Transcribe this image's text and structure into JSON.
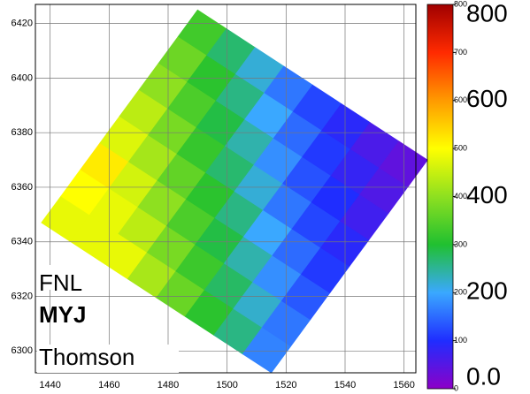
{
  "chart_data": {
    "type": "heatmap",
    "xlim": [
      1435,
      1564
    ],
    "ylim": [
      6292,
      6427
    ],
    "xticks": [
      1440,
      1460,
      1480,
      1500,
      1520,
      1540,
      1560
    ],
    "yticks": [
      6300,
      6320,
      6340,
      6360,
      6380,
      6400,
      6420
    ],
    "grid": true,
    "domain": [
      [
        1437,
        6347
      ],
      [
        1490,
        6425
      ],
      [
        1570,
        6370
      ],
      [
        1515,
        6292
      ]
    ],
    "field": [
      [
        480,
        480,
        480,
        423,
        366,
        310,
        260,
        170
      ],
      [
        500,
        480,
        440,
        380,
        325,
        275,
        225,
        160
      ],
      [
        520,
        460,
        400,
        340,
        290,
        240,
        180,
        135
      ],
      [
        470,
        420,
        360,
        310,
        260,
        200,
        150,
        110
      ],
      [
        440,
        380,
        320,
        270,
        220,
        160,
        120,
        90
      ],
      [
        400,
        340,
        290,
        240,
        180,
        130,
        100,
        70
      ],
      [
        370,
        310,
        260,
        200,
        150,
        110,
        80,
        55
      ],
      [
        330,
        270,
        220,
        160,
        120,
        90,
        60,
        40
      ]
    ],
    "colorbar": {
      "lim": [
        0,
        800
      ],
      "ticks": [
        0,
        100,
        200,
        300,
        400,
        500,
        600,
        700,
        800
      ],
      "colors": [
        "#8c00c8",
        "#1f2dff",
        "#3aa8ff",
        "#20c030",
        "#8ee020",
        "#ffff00",
        "#ff9a00",
        "#ff2a00",
        "#a00000"
      ],
      "major_ticks": [
        {
          "value": 0,
          "label": "0.0"
        },
        200,
        400,
        600,
        800
      ]
    },
    "annotations": [
      "FNL",
      "MYJ",
      "Thomson"
    ]
  }
}
